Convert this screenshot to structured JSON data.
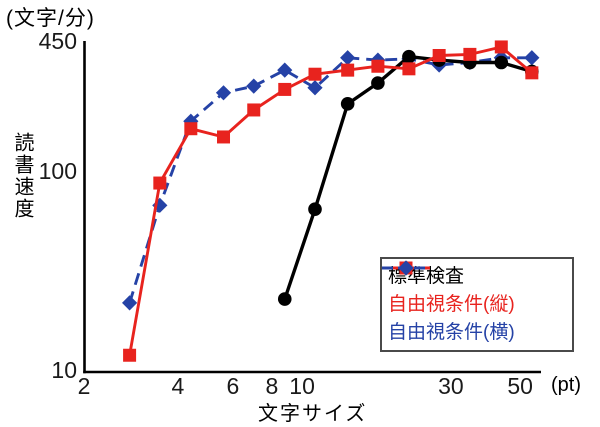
{
  "chart_data": {
    "type": "line",
    "title": "",
    "x_axis": {
      "label": "文字サイズ",
      "unit": "(pt)",
      "scale": "log",
      "min": 2,
      "max": 58,
      "ticks": [
        2,
        4,
        6,
        8,
        10,
        30,
        50
      ]
    },
    "y_axis": {
      "label": "読書速度",
      "unit": "(文字/分)",
      "scale": "log",
      "min": 10,
      "max": 450,
      "ticks": [
        10,
        100,
        450
      ]
    },
    "legend": {
      "position": "bottom-right",
      "border": true
    },
    "series": [
      {
        "name": "標準検査",
        "color": "#000000",
        "marker": "circle",
        "line": "solid",
        "points": [
          [
            8.8,
            23
          ],
          [
            11,
            65
          ],
          [
            14,
            220
          ],
          [
            17.5,
            280
          ],
          [
            22,
            380
          ],
          [
            27.5,
            365
          ],
          [
            34.5,
            355
          ],
          [
            43.5,
            355
          ],
          [
            54.5,
            320
          ]
        ]
      },
      {
        "name": "自由視条件(縦)",
        "color": "#e8231e",
        "marker": "square",
        "line": "solid",
        "points": [
          [
            2.8,
            12
          ],
          [
            3.5,
            88
          ],
          [
            4.4,
            165
          ],
          [
            5.6,
            150
          ],
          [
            7,
            205
          ],
          [
            8.8,
            260
          ],
          [
            11,
            310
          ],
          [
            14,
            325
          ],
          [
            17.5,
            340
          ],
          [
            22,
            330
          ],
          [
            27.5,
            385
          ],
          [
            34.5,
            390
          ],
          [
            43.5,
            425
          ],
          [
            54.5,
            315
          ]
        ]
      },
      {
        "name": "自由視条件(横)",
        "color": "#2542a6",
        "marker": "diamond",
        "line": "dashed",
        "points": [
          [
            2.8,
            22
          ],
          [
            3.5,
            68
          ],
          [
            4.4,
            180
          ],
          [
            5.6,
            250
          ],
          [
            7,
            270
          ],
          [
            8.8,
            325
          ],
          [
            11,
            265
          ],
          [
            14,
            375
          ],
          [
            17.5,
            365
          ],
          [
            22,
            370
          ],
          [
            27.5,
            345
          ],
          [
            34.5,
            355
          ],
          [
            43.5,
            375
          ],
          [
            54.5,
            375
          ]
        ]
      }
    ]
  }
}
